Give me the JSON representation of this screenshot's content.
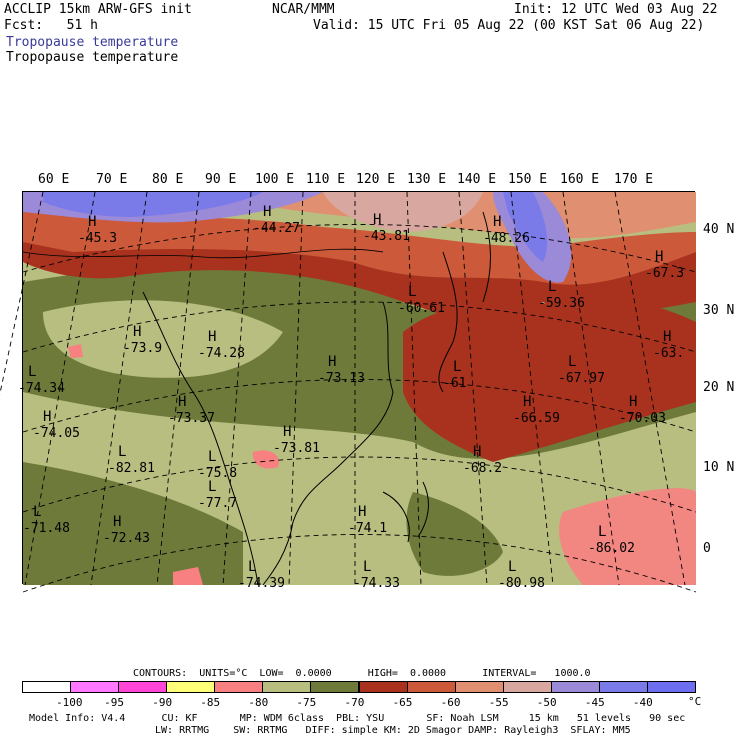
{
  "header": {
    "model": "ACCLIP 15km ARW-GFS init",
    "fcst": "Fcst:   51 h",
    "center": "NCAR/MMM",
    "init": "Init: 12 UTC Wed 03 Aug 22",
    "valid": "Valid: 15 UTC Fri 05 Aug 22 (00 KST Sat 06 Aug 22)",
    "field_line1": "Tropopause temperature",
    "field_line2": "Tropopause temperature"
  },
  "axes": {
    "lon_labels": [
      "60 E",
      "70 E",
      "80 E",
      "90 E",
      "100 E",
      "110 E",
      "120 E",
      "130 E",
      "140 E",
      "150 E",
      "160 E",
      "170 E"
    ],
    "lat_labels": [
      "40 N",
      "30 N",
      "20 N",
      "10 N",
      "0"
    ]
  },
  "map": {
    "labels": [
      {
        "letter": "H",
        "value": "-45.3"
      },
      {
        "letter": "H",
        "value": "-44.27"
      },
      {
        "letter": "H",
        "value": "-43.81"
      },
      {
        "letter": "H",
        "value": "-48.26"
      },
      {
        "letter": "H",
        "value": "-67.3"
      },
      {
        "letter": "L",
        "value": "-60.61"
      },
      {
        "letter": "L",
        "value": "-59.36"
      },
      {
        "letter": "H",
        "value": "-73.9"
      },
      {
        "letter": "H",
        "value": "-74.28"
      },
      {
        "letter": "L",
        "value": "-74.34"
      },
      {
        "letter": "H",
        "value": "-73.13"
      },
      {
        "letter": "L",
        "value": "-61"
      },
      {
        "letter": "L",
        "value": "-67.97"
      },
      {
        "letter": "H",
        "value": "-63."
      },
      {
        "letter": "H",
        "value": "-74.05"
      },
      {
        "letter": "H",
        "value": "-73.37"
      },
      {
        "letter": "H",
        "value": "-73.81"
      },
      {
        "letter": "H",
        "value": "-66.59"
      },
      {
        "letter": "H",
        "value": "-70.03"
      },
      {
        "letter": "L",
        "value": "-82.81"
      },
      {
        "letter": "L",
        "value": "-75.8"
      },
      {
        "letter": "L",
        "value": "-77.7"
      },
      {
        "letter": "H",
        "value": "-68.2"
      },
      {
        "letter": "L",
        "value": "-71.48"
      },
      {
        "letter": "H",
        "value": "-72.43"
      },
      {
        "letter": "H",
        "value": "-74.1"
      },
      {
        "letter": "L",
        "value": "-86.02"
      },
      {
        "letter": "L",
        "value": "-74.39"
      },
      {
        "letter": "L",
        "value": "-74.33"
      },
      {
        "letter": "L",
        "value": "-80.98"
      }
    ]
  },
  "contours": {
    "units_label": "CONTOURS:  UNITS=°C  LOW=  0.0000      HIGH=  0.0000      INTERVAL=   1000.0"
  },
  "legend": {
    "ticks": [
      "-100",
      "-95",
      "-90",
      "-85",
      "-80",
      "-75",
      "-70",
      "-65",
      "-60",
      "-55",
      "-50",
      "-45",
      "-40"
    ],
    "unit": "°C",
    "colors": [
      "#ffffff",
      "#ff78ff",
      "#ff46d6",
      "#ffff78",
      "#f88080",
      "#b8be80",
      "#6e7a3a",
      "#a8321e",
      "#cc5a3a",
      "#e09070",
      "#d8a8a0",
      "#9a8ad8",
      "#7a7ae8",
      "#6e6ef0"
    ]
  },
  "footer": {
    "line1": "Model Info: V4.4      CU: KF       MP: WDM 6class  PBL: YSU       SF: Noah LSM     15 km   51 levels   90 sec",
    "line2": "LW: RRTMG    SW: RRTMG   DIFF: simple KM: 2D Smagor DAMP: Rayleigh3  SFLAY: MM5"
  }
}
